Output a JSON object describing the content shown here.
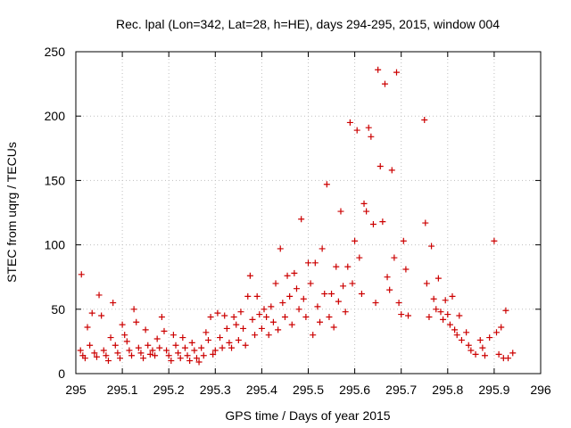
{
  "chart_data": {
    "type": "scatter",
    "title": "Rec. lpal (Lon=342, Lat=28, h=HE), days 294-295, 2015, window 004",
    "xlabel": "GPS time / Days of year 2015",
    "ylabel": "STEC from uqrg / TECUs",
    "xlim": [
      295,
      296
    ],
    "ylim": [
      0,
      250
    ],
    "xticks": [
      "295",
      "295.1",
      "295.2",
      "295.3",
      "295.4",
      "295.5",
      "295.6",
      "295.7",
      "295.8",
      "295.9",
      "296"
    ],
    "yticks": [
      "0",
      "50",
      "100",
      "150",
      "200",
      "250"
    ],
    "grid": true,
    "marker": "+",
    "color": "#cc0000",
    "points": [
      [
        295.012,
        77
      ],
      [
        295.01,
        18
      ],
      [
        295.015,
        14
      ],
      [
        295.02,
        12
      ],
      [
        295.025,
        36
      ],
      [
        295.03,
        22
      ],
      [
        295.035,
        47
      ],
      [
        295.04,
        16
      ],
      [
        295.045,
        13
      ],
      [
        295.05,
        61
      ],
      [
        295.055,
        45
      ],
      [
        295.06,
        18
      ],
      [
        295.065,
        14
      ],
      [
        295.07,
        10
      ],
      [
        295.075,
        28
      ],
      [
        295.08,
        55
      ],
      [
        295.085,
        22
      ],
      [
        295.09,
        16
      ],
      [
        295.095,
        12
      ],
      [
        295.1,
        38
      ],
      [
        295.105,
        30
      ],
      [
        295.11,
        25
      ],
      [
        295.115,
        18
      ],
      [
        295.12,
        14
      ],
      [
        295.125,
        50
      ],
      [
        295.13,
        40
      ],
      [
        295.135,
        20
      ],
      [
        295.14,
        16
      ],
      [
        295.145,
        12
      ],
      [
        295.15,
        34
      ],
      [
        295.155,
        22
      ],
      [
        295.16,
        15
      ],
      [
        295.165,
        18
      ],
      [
        295.17,
        14
      ],
      [
        295.175,
        27
      ],
      [
        295.18,
        20
      ],
      [
        295.185,
        44
      ],
      [
        295.19,
        33
      ],
      [
        295.195,
        18
      ],
      [
        295.2,
        14
      ],
      [
        295.205,
        10
      ],
      [
        295.21,
        30
      ],
      [
        295.215,
        22
      ],
      [
        295.22,
        16
      ],
      [
        295.225,
        12
      ],
      [
        295.23,
        28
      ],
      [
        295.235,
        20
      ],
      [
        295.24,
        14
      ],
      [
        295.245,
        10
      ],
      [
        295.25,
        24
      ],
      [
        295.255,
        18
      ],
      [
        295.26,
        12
      ],
      [
        295.265,
        9
      ],
      [
        295.27,
        20
      ],
      [
        295.275,
        14
      ],
      [
        295.28,
        32
      ],
      [
        295.285,
        26
      ],
      [
        295.29,
        44
      ],
      [
        295.295,
        15
      ],
      [
        295.3,
        18
      ],
      [
        295.305,
        47
      ],
      [
        295.31,
        28
      ],
      [
        295.315,
        20
      ],
      [
        295.32,
        45
      ],
      [
        295.325,
        35
      ],
      [
        295.33,
        24
      ],
      [
        295.335,
        20
      ],
      [
        295.34,
        44
      ],
      [
        295.345,
        38
      ],
      [
        295.35,
        26
      ],
      [
        295.355,
        48
      ],
      [
        295.36,
        35
      ],
      [
        295.365,
        22
      ],
      [
        295.37,
        60
      ],
      [
        295.375,
        76
      ],
      [
        295.38,
        42
      ],
      [
        295.385,
        30
      ],
      [
        295.39,
        60
      ],
      [
        295.395,
        46
      ],
      [
        295.4,
        35
      ],
      [
        295.405,
        50
      ],
      [
        295.41,
        44
      ],
      [
        295.415,
        30
      ],
      [
        295.42,
        52
      ],
      [
        295.425,
        40
      ],
      [
        295.43,
        70
      ],
      [
        295.435,
        34
      ],
      [
        295.44,
        97
      ],
      [
        295.445,
        55
      ],
      [
        295.45,
        44
      ],
      [
        295.455,
        76
      ],
      [
        295.46,
        60
      ],
      [
        295.465,
        38
      ],
      [
        295.47,
        78
      ],
      [
        295.475,
        66
      ],
      [
        295.48,
        50
      ],
      [
        295.485,
        120
      ],
      [
        295.49,
        58
      ],
      [
        295.495,
        44
      ],
      [
        295.5,
        86
      ],
      [
        295.505,
        70
      ],
      [
        295.51,
        30
      ],
      [
        295.515,
        86
      ],
      [
        295.52,
        52
      ],
      [
        295.525,
        40
      ],
      [
        295.53,
        97
      ],
      [
        295.535,
        62
      ],
      [
        295.54,
        147
      ],
      [
        295.545,
        44
      ],
      [
        295.55,
        62
      ],
      [
        295.555,
        36
      ],
      [
        295.56,
        83
      ],
      [
        295.565,
        56
      ],
      [
        295.57,
        126
      ],
      [
        295.575,
        68
      ],
      [
        295.58,
        48
      ],
      [
        295.585,
        83
      ],
      [
        295.59,
        195
      ],
      [
        295.595,
        70
      ],
      [
        295.6,
        103
      ],
      [
        295.605,
        189
      ],
      [
        295.61,
        90
      ],
      [
        295.615,
        62
      ],
      [
        295.62,
        132
      ],
      [
        295.625,
        126
      ],
      [
        295.63,
        191
      ],
      [
        295.635,
        184
      ],
      [
        295.64,
        116
      ],
      [
        295.645,
        55
      ],
      [
        295.65,
        236
      ],
      [
        295.655,
        161
      ],
      [
        295.66,
        118
      ],
      [
        295.665,
        225
      ],
      [
        295.67,
        75
      ],
      [
        295.675,
        65
      ],
      [
        295.68,
        158
      ],
      [
        295.685,
        90
      ],
      [
        295.69,
        234
      ],
      [
        295.695,
        55
      ],
      [
        295.7,
        46
      ],
      [
        295.705,
        103
      ],
      [
        295.71,
        81
      ],
      [
        295.715,
        45
      ],
      [
        295.75,
        197
      ],
      [
        295.752,
        117
      ],
      [
        295.755,
        70
      ],
      [
        295.76,
        44
      ],
      [
        295.765,
        99
      ],
      [
        295.77,
        58
      ],
      [
        295.775,
        50
      ],
      [
        295.78,
        74
      ],
      [
        295.785,
        48
      ],
      [
        295.79,
        42
      ],
      [
        295.795,
        57
      ],
      [
        295.8,
        46
      ],
      [
        295.805,
        38
      ],
      [
        295.81,
        60
      ],
      [
        295.815,
        34
      ],
      [
        295.82,
        30
      ],
      [
        295.825,
        45
      ],
      [
        295.83,
        26
      ],
      [
        295.84,
        32
      ],
      [
        295.845,
        22
      ],
      [
        295.85,
        18
      ],
      [
        295.86,
        15
      ],
      [
        295.87,
        26
      ],
      [
        295.875,
        20
      ],
      [
        295.88,
        14
      ],
      [
        295.89,
        28
      ],
      [
        295.9,
        103
      ],
      [
        295.905,
        32
      ],
      [
        295.91,
        15
      ],
      [
        295.915,
        36
      ],
      [
        295.92,
        12
      ],
      [
        295.925,
        49
      ],
      [
        295.93,
        12
      ],
      [
        295.94,
        16
      ]
    ]
  }
}
